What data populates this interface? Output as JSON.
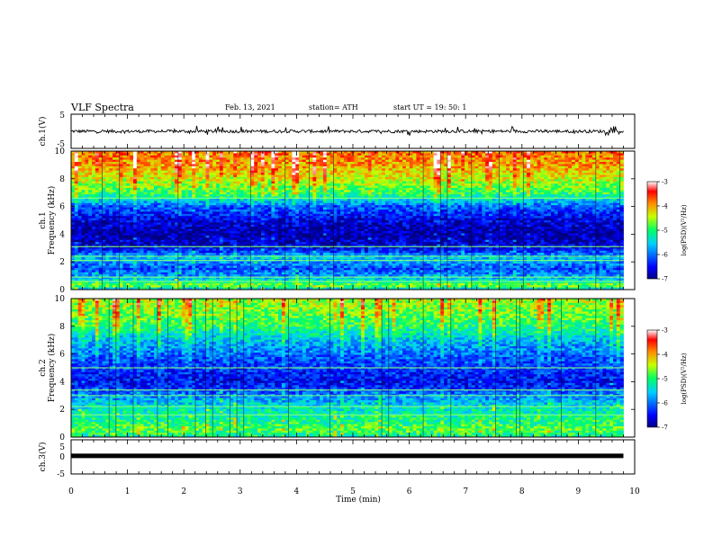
{
  "header": {
    "title": "VLF Spectra",
    "date": "Feb. 13, 2021",
    "station": "station= ATH",
    "start": "start  UT  =   19: 50: 1"
  },
  "chart_data": [
    {
      "type": "line",
      "name": "ch1-waveform",
      "ylabel": "ch.1(V)",
      "ylim": [
        -5,
        5
      ],
      "y_ticks": [
        "5",
        "-5"
      ],
      "xlim": [
        0,
        10
      ],
      "data_ends_at_x": 9.8,
      "approx_baseline": 0.0,
      "approx_spike_range": [
        -1.3,
        1.6
      ]
    },
    {
      "type": "heatmap",
      "name": "ch1-spectrogram",
      "ylabel_lines": [
        "ch.1",
        "Frequency (kHz)"
      ],
      "ylim": [
        0,
        10
      ],
      "y_ticks": [
        "0",
        "2",
        "4",
        "6",
        "8",
        "10"
      ],
      "xlim": [
        0,
        10
      ],
      "data_ends_at_x": 9.8,
      "colorbar": {
        "label": "log(PSD)(V²/Hz)",
        "range": [
          -7,
          -3
        ],
        "ticks": [
          "-3",
          "-4",
          "-5",
          "-6",
          "-7"
        ]
      },
      "frequency_profile_log_psd": [
        {
          "f": 0.0,
          "v": -5.6
        },
        {
          "f": 0.3,
          "v": -4.6
        },
        {
          "f": 0.6,
          "v": -5.3
        },
        {
          "f": 1.0,
          "v": -5.8
        },
        {
          "f": 1.5,
          "v": -6.2
        },
        {
          "f": 2.0,
          "v": -5.8
        },
        {
          "f": 2.3,
          "v": -5.6
        },
        {
          "f": 3.0,
          "v": -6.6
        },
        {
          "f": 4.0,
          "v": -6.9
        },
        {
          "f": 5.0,
          "v": -6.6
        },
        {
          "f": 6.0,
          "v": -6.1
        },
        {
          "f": 6.6,
          "v": -5.3
        },
        {
          "f": 7.0,
          "v": -4.9
        },
        {
          "f": 8.0,
          "v": -4.4
        },
        {
          "f": 9.0,
          "v": -4.0
        },
        {
          "f": 10.0,
          "v": -3.8
        }
      ],
      "spectral_lines_khz": [
        0.6,
        0.9,
        2.1,
        2.4,
        3.1,
        6.6
      ]
    },
    {
      "type": "heatmap",
      "name": "ch2-spectrogram",
      "ylabel_lines": [
        "ch.2",
        "Frequency (kHz)"
      ],
      "ylim": [
        0,
        10
      ],
      "y_ticks": [
        "0",
        "2",
        "4",
        "6",
        "8",
        "10"
      ],
      "xlim": [
        0,
        10
      ],
      "data_ends_at_x": 9.8,
      "colorbar": {
        "label": "log(PSD)(V²/Hz)",
        "range": [
          -7,
          -3
        ],
        "ticks": [
          "-3",
          "-4",
          "-5",
          "-6",
          "-7"
        ]
      },
      "frequency_profile_log_psd": [
        {
          "f": 0.0,
          "v": -5.2
        },
        {
          "f": 0.5,
          "v": -4.8
        },
        {
          "f": 1.0,
          "v": -5.0
        },
        {
          "f": 1.6,
          "v": -5.2
        },
        {
          "f": 2.0,
          "v": -5.3
        },
        {
          "f": 2.5,
          "v": -5.6
        },
        {
          "f": 3.0,
          "v": -5.9
        },
        {
          "f": 3.5,
          "v": -6.3
        },
        {
          "f": 4.0,
          "v": -6.5
        },
        {
          "f": 5.0,
          "v": -6.3
        },
        {
          "f": 6.0,
          "v": -6.0
        },
        {
          "f": 7.0,
          "v": -5.6
        },
        {
          "f": 8.0,
          "v": -5.0
        },
        {
          "f": 9.0,
          "v": -4.7
        },
        {
          "f": 10.0,
          "v": -4.5
        }
      ],
      "spectral_lines_khz": [
        1.6,
        2.2,
        3.0,
        3.4,
        5.0
      ]
    },
    {
      "type": "line",
      "name": "ch3-waveform",
      "ylabel": "ch.3(V)",
      "ylim": [
        -5,
        5
      ],
      "y_ticks": [
        "5",
        "0",
        "-5"
      ],
      "xlim": [
        0,
        10
      ],
      "data_ends_at_x": 9.8,
      "constant_value": 0.3,
      "xlabel": "Time (min)",
      "x_ticks": [
        "0",
        "1",
        "2",
        "3",
        "4",
        "5",
        "6",
        "7",
        "8",
        "9",
        "10"
      ]
    }
  ]
}
